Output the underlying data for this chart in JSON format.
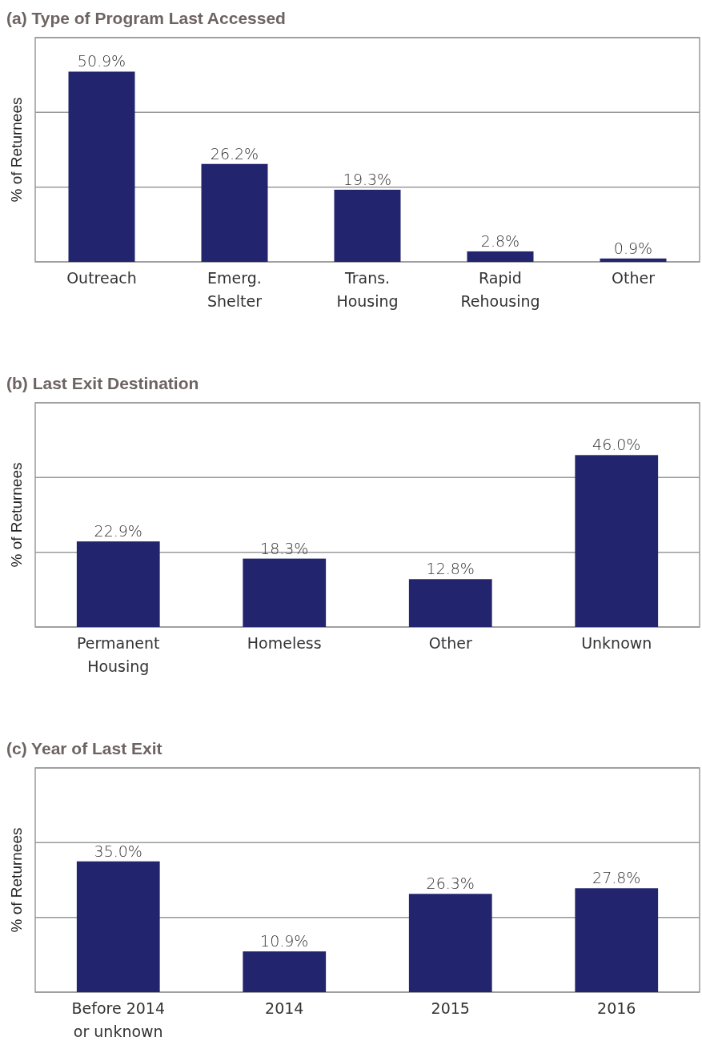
{
  "chart_data": [
    {
      "type": "bar",
      "title": "(a) Type of Program Last Accessed",
      "ylabel": "% of Returnees",
      "categories": [
        "Outreach",
        "Emerg.\nShelter",
        "Trans.\nHousing",
        "Rapid\nRehousing",
        "Other"
      ],
      "values": [
        50.9,
        26.2,
        19.3,
        2.8,
        0.9
      ],
      "color": "#22246e",
      "ylim": [
        0,
        60
      ],
      "yticks": [
        {
          "value": 0,
          "label": null
        },
        {
          "value": 20,
          "label": null
        },
        {
          "value": 40,
          "label": null
        },
        {
          "value": 60,
          "label": null
        }
      ],
      "grid": "y",
      "tick_labels": "x",
      "data_labels": true,
      "value_labels": [
        "50.9%",
        "26.2%",
        "19.3%",
        "2.8%",
        "0.9%"
      ]
    },
    {
      "type": "bar",
      "title": "(b) Last Exit Destination",
      "ylabel": "% of Returnees",
      "categories": [
        "Permanent\nHousing",
        "Homeless",
        "Other",
        "Unknown"
      ],
      "values": [
        22.9,
        18.3,
        12.8,
        46.0
      ],
      "color": "#22246e",
      "ylim": [
        0,
        60
      ],
      "yticks": [
        {
          "value": 0,
          "label": null
        },
        {
          "value": 20,
          "label": null
        },
        {
          "value": 40,
          "label": null
        },
        {
          "value": 60,
          "label": null
        }
      ],
      "grid": "y",
      "tick_labels": "x",
      "data_labels": true,
      "value_labels": [
        "22.9%",
        "18.3%",
        "12.8%",
        "46.0%"
      ]
    },
    {
      "type": "bar",
      "title": "(c) Year of Last Exit",
      "ylabel": "% of Returnees",
      "categories": [
        "Before 2014\nor unknown",
        "2014",
        "2015",
        "2016"
      ],
      "values": [
        35.0,
        10.9,
        26.3,
        27.8
      ],
      "color": "#22246e",
      "ylim": [
        0,
        60
      ],
      "yticks": [
        {
          "value": 0,
          "label": null
        },
        {
          "value": 20,
          "label": null
        },
        {
          "value": 40,
          "label": null
        },
        {
          "value": 60,
          "label": null
        }
      ],
      "grid": "y",
      "tick_labels": "x",
      "data_labels": true,
      "value_labels": [
        "35.0%",
        "10.9%",
        "26.3%",
        "27.8%"
      ]
    }
  ]
}
